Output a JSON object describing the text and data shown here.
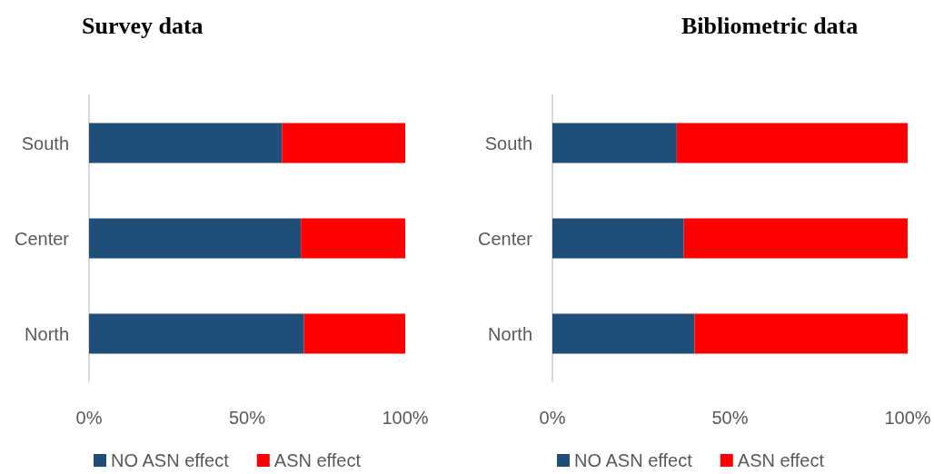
{
  "chart_data": [
    {
      "type": "bar",
      "title": "Survey data",
      "orientation": "horizontal",
      "stacked": true,
      "categories": [
        "South",
        "Center",
        "North"
      ],
      "series": [
        {
          "name": "NO ASN effect",
          "color": "#1f4e79",
          "values": [
            61,
            67,
            68
          ]
        },
        {
          "name": "ASN effect",
          "color": "#ff0000",
          "values": [
            39,
            33,
            32
          ]
        }
      ],
      "xlim": [
        0,
        100
      ],
      "xticks": [
        {
          "value": 0,
          "label": "0%"
        },
        {
          "value": 50,
          "label": "50%"
        },
        {
          "value": 100,
          "label": "100%"
        }
      ],
      "grid": false,
      "legend": "bottom"
    },
    {
      "type": "bar",
      "title": "Bibliometric data",
      "orientation": "horizontal",
      "stacked": true,
      "categories": [
        "South",
        "Center",
        "North"
      ],
      "series": [
        {
          "name": "NO ASN effect",
          "color": "#1f4e79",
          "values": [
            35,
            37,
            40
          ]
        },
        {
          "name": "ASN effect",
          "color": "#ff0000",
          "values": [
            65,
            63,
            60
          ]
        }
      ],
      "xlim": [
        0,
        100
      ],
      "xticks": [
        {
          "value": 0,
          "label": "0%"
        },
        {
          "value": 50,
          "label": "50%"
        },
        {
          "value": 100,
          "label": "100%"
        }
      ],
      "grid": false,
      "legend": "bottom"
    }
  ]
}
